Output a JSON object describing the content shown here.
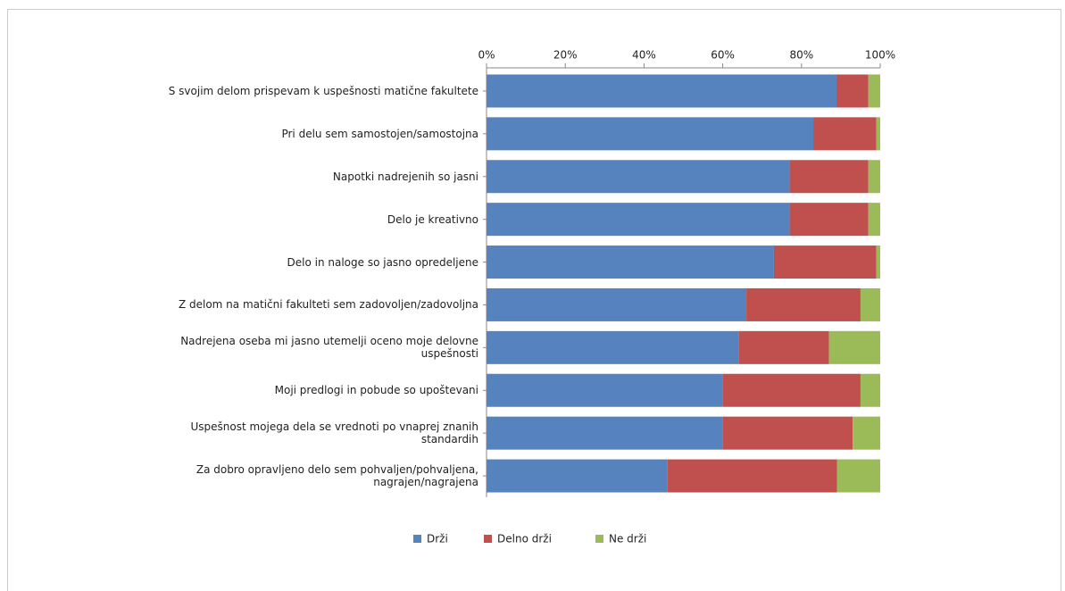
{
  "chart_data": {
    "type": "stacked_barh",
    "categories": [
      "S svojim delom prispevam k uspešnosti matične fakultete",
      "Pri delu sem samostojen/samostojna",
      "Napotki nadrejenih so jasni",
      "Delo je kreativno",
      "Delo in naloge so jasno opredeljene",
      "Z delom na matični fakulteti sem zadovoljen/zadovoljna",
      "Nadrejena oseba mi jasno utemelji oceno moje delovne\nuspešnosti",
      "Moji predlogi in pobude so upoštevani",
      "Uspešnost mojega dela se vrednoti po vnaprej znanih\nstandardih",
      "Za dobro opravljeno delo sem pohvaljen/pohvaljena,\nnagrajen/nagrajena"
    ],
    "series": [
      {
        "name": "Drži",
        "color": "#5683be",
        "values": [
          89,
          83,
          77,
          77,
          73,
          66,
          64,
          60,
          60,
          46
        ]
      },
      {
        "name": "Delno drži",
        "color": "#c0504d",
        "values": [
          8,
          16,
          20,
          20,
          26,
          29,
          23,
          35,
          33,
          43
        ]
      },
      {
        "name": "Ne drži",
        "color": "#9bbb59",
        "values": [
          3,
          1,
          3,
          3,
          1,
          5,
          13,
          5,
          7,
          11
        ]
      }
    ],
    "xlim": [
      0,
      100
    ],
    "xticks": [
      {
        "value": 0,
        "label": "0%"
      },
      {
        "value": 20,
        "label": "20%"
      },
      {
        "value": 40,
        "label": "40%"
      },
      {
        "value": 60,
        "label": "60%"
      },
      {
        "value": 80,
        "label": "80%"
      },
      {
        "value": 100,
        "label": "100%"
      }
    ],
    "legend": "bottom"
  }
}
